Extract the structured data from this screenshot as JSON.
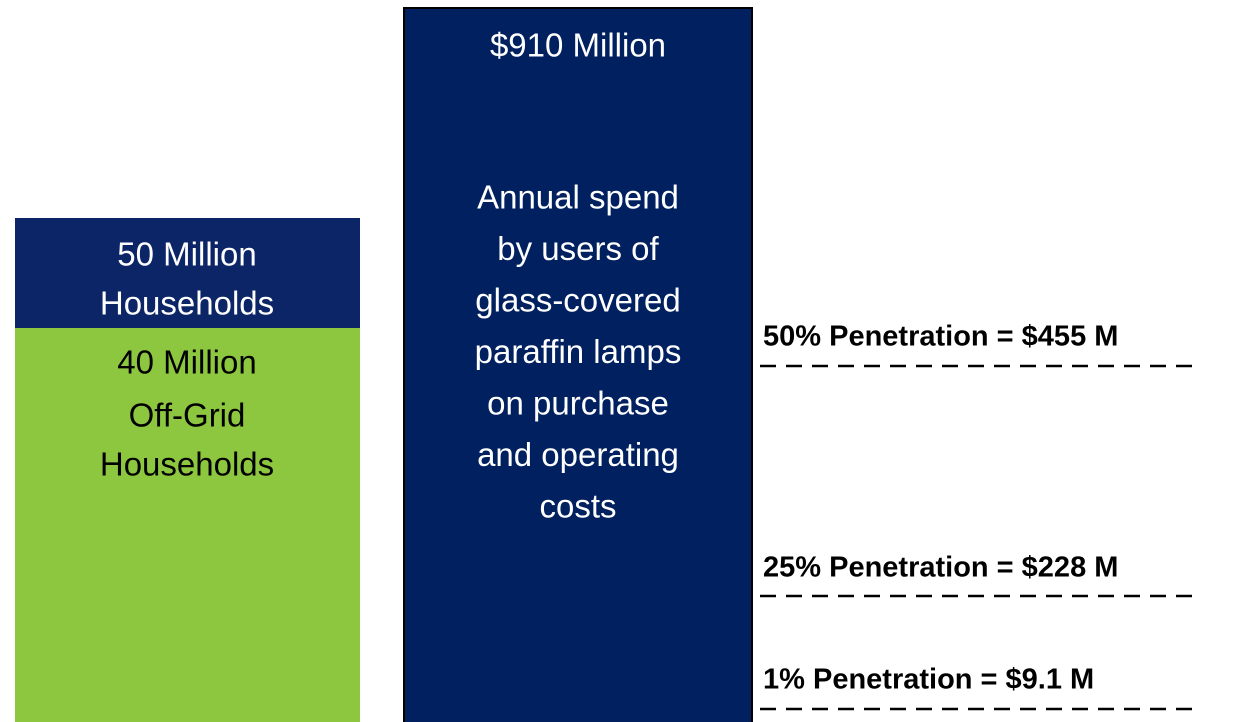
{
  "households": {
    "total": [
      "50 Million",
      "Households"
    ],
    "off_grid": [
      "40 Million",
      "Off-Grid",
      "Households"
    ]
  },
  "spend": {
    "amount": "$910 Million",
    "description": [
      "Annual spend",
      "by users of",
      "glass-covered",
      "paraffin lamps",
      "on purchase",
      "and operating",
      "costs"
    ]
  },
  "penetration": [
    "50% Penetration = $455 M",
    "25% Penetration = $228 M",
    "1% Penetration = $9.1 M"
  ]
}
